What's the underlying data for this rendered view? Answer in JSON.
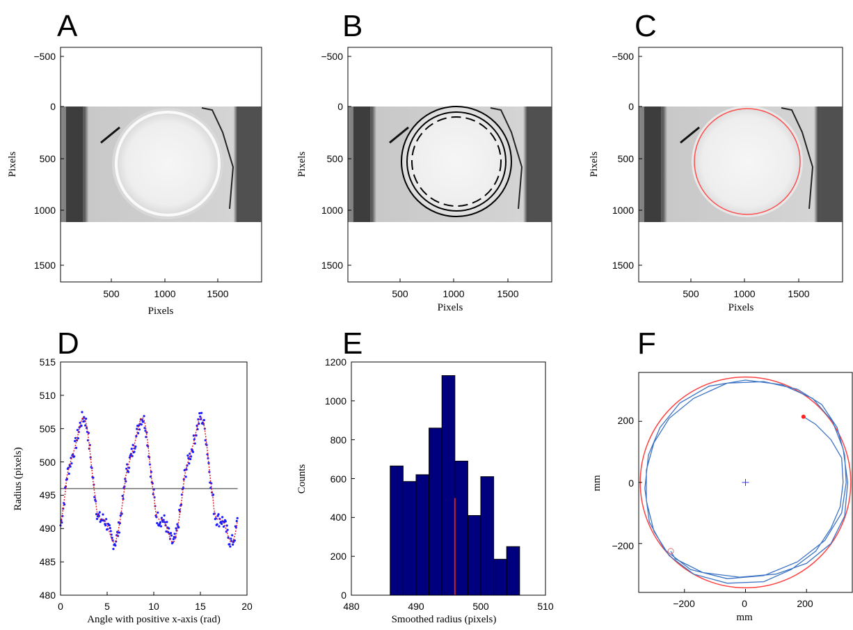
{
  "figure": {
    "panels": [
      {
        "label": "A",
        "xlabel": "Pixels",
        "ylabel": "Pixels",
        "xticks": [
          "500",
          "1000",
          "1500"
        ],
        "yticks": [
          "−500",
          "0",
          "500",
          "1000",
          "1500"
        ]
      },
      {
        "label": "B",
        "xlabel": "Pixels",
        "ylabel": "Pixels",
        "xticks": [
          "500",
          "1000",
          "1500"
        ],
        "yticks": [
          "−500",
          "0",
          "500",
          "1000",
          "1500"
        ]
      },
      {
        "label": "C",
        "xlabel": "Pixels",
        "ylabel": "Pixels",
        "xticks": [
          "500",
          "1000",
          "1500"
        ],
        "yticks": [
          "−500",
          "0",
          "500",
          "1000",
          "1500"
        ]
      },
      {
        "label": "D",
        "xlabel": "Angle with positive x-axis (rad)",
        "ylabel": "Radius (pixels)",
        "xticks": [
          "0",
          "5",
          "10",
          "15",
          "20"
        ],
        "yticks": [
          "480",
          "485",
          "490",
          "495",
          "500",
          "505",
          "510",
          "515"
        ]
      },
      {
        "label": "E",
        "xlabel": "Smoothed radius (pixels)",
        "ylabel": "Counts",
        "xticks": [
          "480",
          "490",
          "500",
          "510"
        ],
        "yticks": [
          "0",
          "200",
          "400",
          "600",
          "800",
          "1000",
          "1200"
        ]
      },
      {
        "label": "F",
        "xlabel": "mm",
        "ylabel": "mm",
        "xticks": [
          "−200",
          "0",
          "200"
        ],
        "yticks": [
          "200",
          "0",
          "−200"
        ]
      }
    ]
  },
  "chart_data": [
    {
      "type": "image",
      "panel": "A",
      "xlim": [
        1,
        1920
      ],
      "ylim": [
        -650,
        1650
      ],
      "image_rows": [
        0,
        1080
      ],
      "y_reversed": true,
      "overlay": "none"
    },
    {
      "type": "image",
      "panel": "B",
      "xlim": [
        1,
        1920
      ],
      "ylim": [
        -650,
        1650
      ],
      "image_rows": [
        0,
        1080
      ],
      "y_reversed": true,
      "overlay": "concentric circles (solid outer/inner, dashed middle)",
      "center": [
        1045,
        515
      ]
    },
    {
      "type": "image",
      "panel": "C",
      "xlim": [
        1,
        1920
      ],
      "ylim": [
        -650,
        1650
      ],
      "image_rows": [
        0,
        1080
      ],
      "y_reversed": true,
      "overlay": "red fitted circle",
      "overlay_color": "#ff4d4d",
      "center": [
        1045,
        515
      ]
    },
    {
      "type": "scatter",
      "panel": "D",
      "xlim": [
        0,
        20
      ],
      "ylim": [
        480,
        515
      ],
      "mean_line": 496,
      "x_extent": [
        0,
        19
      ],
      "series": [
        {
          "style": "blue dots",
          "color": "#1a1aff"
        },
        {
          "style": "red dotted fit",
          "color": "#e0202a"
        },
        {
          "style": "horizontal mean line",
          "color": "#2a2a2a"
        }
      ],
      "peaks_at": [
        2.2,
        8.5,
        14.8
      ],
      "peak_value": 510,
      "trough_value": 485,
      "period": 6.3
    },
    {
      "type": "bar",
      "panel": "E",
      "xlim": [
        480,
        510
      ],
      "ylim": [
        0,
        1200
      ],
      "bin_edges": [
        486,
        488,
        490,
        492,
        494,
        496,
        498,
        500,
        502,
        504,
        506,
        508,
        510
      ],
      "values": [
        665,
        585,
        620,
        860,
        1130,
        690,
        410,
        610,
        185,
        250,
        0,
        0
      ],
      "marker_line": {
        "x": 496,
        "height": 500,
        "color": "#cc2222"
      },
      "bar_color": "#00007f"
    },
    {
      "type": "line",
      "panel": "F",
      "xlim": [
        -350,
        350
      ],
      "ylim": [
        -360,
        360
      ],
      "boundary_circle": {
        "center": [
          0,
          0
        ],
        "radius": 345,
        "color": "#ff4040"
      },
      "trajectory_color": "#3a72c4",
      "center_marker": [
        0,
        0
      ],
      "start_marker": {
        "x": 190,
        "y": 215,
        "color": "#ff2020"
      },
      "end_marker": {
        "x": -245,
        "y": -225,
        "color": "#e07070"
      },
      "trajectory": [
        [
          190,
          215
        ],
        [
          230,
          190
        ],
        [
          280,
          140
        ],
        [
          315,
          80
        ],
        [
          320,
          0
        ],
        [
          310,
          -80
        ],
        [
          280,
          -150
        ],
        [
          230,
          -225
        ],
        [
          150,
          -285
        ],
        [
          60,
          -325
        ],
        [
          -60,
          -330
        ],
        [
          -170,
          -300
        ],
        [
          -250,
          -240
        ],
        [
          -300,
          -160
        ],
        [
          -325,
          -60
        ],
        [
          -325,
          40
        ],
        [
          -300,
          130
        ],
        [
          -250,
          210
        ],
        [
          -170,
          275
        ],
        [
          -60,
          325
        ],
        [
          60,
          330
        ],
        [
          170,
          305
        ],
        [
          250,
          255
        ],
        [
          300,
          180
        ],
        [
          325,
          90
        ],
        [
          330,
          0
        ],
        [
          315,
          -100
        ],
        [
          260,
          -190
        ],
        [
          170,
          -260
        ],
        [
          60,
          -305
        ],
        [
          -60,
          -315
        ],
        [
          -180,
          -285
        ],
        [
          -265,
          -220
        ],
        [
          -315,
          -130
        ],
        [
          -330,
          -20
        ],
        [
          -318,
          90
        ],
        [
          -280,
          180
        ],
        [
          -215,
          260
        ],
        [
          -120,
          315
        ],
        [
          0,
          335
        ],
        [
          120,
          320
        ],
        [
          220,
          275
        ],
        [
          285,
          200
        ],
        [
          320,
          110
        ],
        [
          335,
          0
        ],
        [
          325,
          -110
        ],
        [
          280,
          -200
        ],
        [
          200,
          -265
        ],
        [
          100,
          -300
        ],
        [
          -20,
          -310
        ],
        [
          -140,
          -295
        ],
        [
          -230,
          -250
        ],
        [
          -245,
          -225
        ]
      ]
    }
  ]
}
